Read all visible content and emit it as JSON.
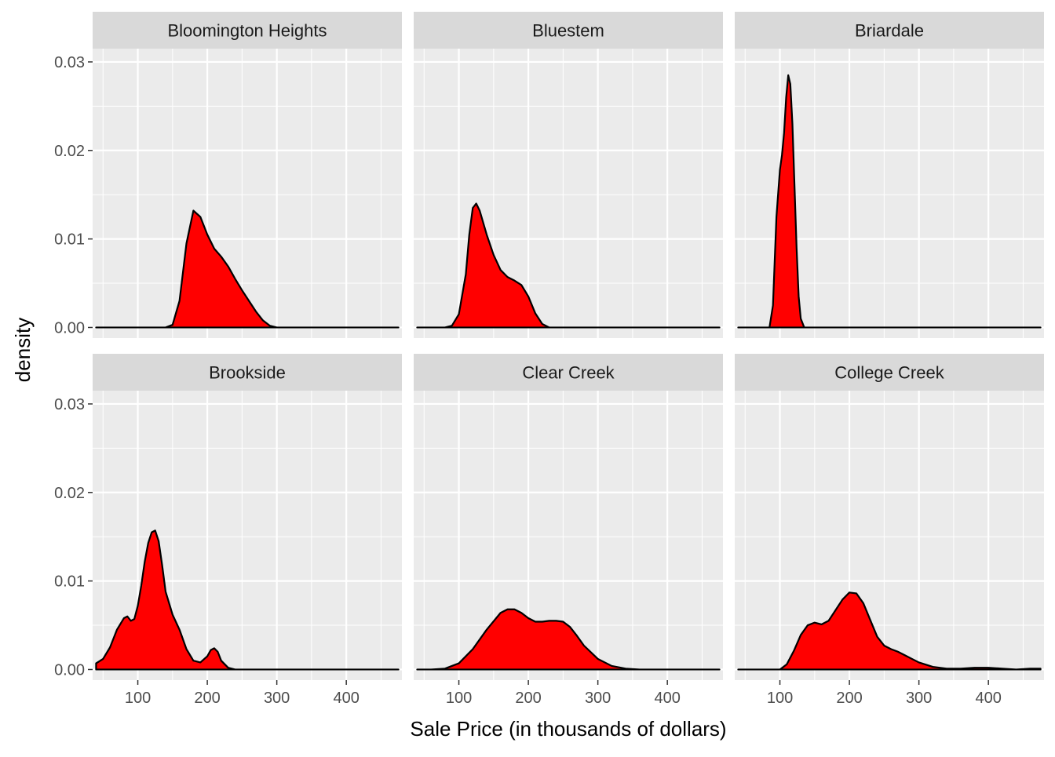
{
  "chart_data": {
    "type": "area",
    "subtype": "faceted-density",
    "xlabel": "Sale Price (in thousands of dollars)",
    "ylabel": "density",
    "xlim": [
      35,
      480
    ],
    "ylim": [
      -0.0012,
      0.0315
    ],
    "x_ticks": [
      100,
      200,
      300,
      400
    ],
    "x_tick_labels": [
      "100",
      "200",
      "300",
      "400"
    ],
    "y_ticks": [
      0,
      0.01,
      0.02,
      0.03
    ],
    "y_tick_labels": [
      "0.00",
      "0.01",
      "0.02",
      "0.03"
    ],
    "grid": true,
    "legend": "none",
    "fill_color": "#ff0000",
    "line_color": "#000000",
    "panel_background": "#ebebeb",
    "strip_background": "#d9d9d9",
    "layout": {
      "rows": 2,
      "cols": 3
    },
    "facets": [
      {
        "name": "Bloomington Heights",
        "x": [
          40,
          140,
          150,
          160,
          170,
          180,
          190,
          200,
          210,
          220,
          230,
          240,
          250,
          260,
          270,
          280,
          290,
          300,
          310,
          475
        ],
        "y": [
          0,
          0,
          0.0003,
          0.003,
          0.0095,
          0.0132,
          0.0125,
          0.0105,
          0.0089,
          0.008,
          0.0069,
          0.0055,
          0.0042,
          0.003,
          0.0018,
          0.0008,
          0.0002,
          0,
          0,
          0
        ]
      },
      {
        "name": "Bluestem",
        "x": [
          40,
          80,
          90,
          100,
          110,
          115,
          120,
          125,
          130,
          140,
          150,
          160,
          170,
          180,
          190,
          200,
          210,
          220,
          230,
          475
        ],
        "y": [
          0,
          0,
          0.0002,
          0.0015,
          0.006,
          0.0105,
          0.0135,
          0.014,
          0.0132,
          0.0105,
          0.0082,
          0.0065,
          0.0057,
          0.0053,
          0.0048,
          0.0035,
          0.0016,
          0.0004,
          0,
          0
        ]
      },
      {
        "name": "Briardale",
        "x": [
          40,
          85,
          90,
          95,
          100,
          103,
          106,
          109,
          112,
          115,
          118,
          121,
          124,
          127,
          130,
          135,
          475
        ],
        "y": [
          0,
          0,
          0.0025,
          0.0125,
          0.0178,
          0.0195,
          0.022,
          0.026,
          0.0285,
          0.0275,
          0.023,
          0.016,
          0.009,
          0.0035,
          0.001,
          0,
          0
        ]
      },
      {
        "name": "Brookside",
        "x": [
          40,
          50,
          60,
          70,
          80,
          85,
          90,
          95,
          100,
          105,
          110,
          115,
          120,
          125,
          130,
          135,
          140,
          150,
          160,
          170,
          180,
          190,
          200,
          205,
          210,
          215,
          220,
          230,
          240,
          475
        ],
        "y": [
          0.0007,
          0.0012,
          0.0025,
          0.0045,
          0.0058,
          0.006,
          0.0055,
          0.0057,
          0.0072,
          0.0095,
          0.0122,
          0.0143,
          0.0155,
          0.0157,
          0.0145,
          0.0118,
          0.0088,
          0.0062,
          0.0045,
          0.0023,
          0.001,
          0.0008,
          0.0015,
          0.0022,
          0.0024,
          0.002,
          0.001,
          0.0002,
          0,
          0
        ]
      },
      {
        "name": "Clear Creek",
        "x": [
          40,
          60,
          80,
          100,
          120,
          140,
          160,
          170,
          180,
          190,
          200,
          210,
          220,
          230,
          240,
          250,
          260,
          270,
          280,
          300,
          320,
          340,
          360,
          475
        ],
        "y": [
          0,
          0,
          0.0001,
          0.0007,
          0.0023,
          0.0045,
          0.0064,
          0.0068,
          0.0068,
          0.0064,
          0.0058,
          0.0054,
          0.0054,
          0.0055,
          0.0055,
          0.0054,
          0.0048,
          0.0038,
          0.0027,
          0.0012,
          0.0004,
          0.0001,
          0,
          0
        ]
      },
      {
        "name": "College Creek",
        "x": [
          40,
          100,
          110,
          120,
          130,
          140,
          150,
          160,
          170,
          180,
          190,
          200,
          210,
          220,
          230,
          240,
          250,
          260,
          270,
          280,
          290,
          300,
          320,
          340,
          360,
          380,
          390,
          400,
          420,
          440,
          460,
          475
        ],
        "y": [
          0,
          0,
          0.0006,
          0.0021,
          0.0039,
          0.005,
          0.0053,
          0.0051,
          0.0055,
          0.0067,
          0.0079,
          0.0087,
          0.0086,
          0.0075,
          0.0056,
          0.0037,
          0.0027,
          0.0023,
          0.002,
          0.0016,
          0.0012,
          0.0008,
          0.0003,
          0.0001,
          0.0001,
          0.0002,
          0.0002,
          0.0002,
          0.0001,
          0,
          0.0001,
          0.0001
        ]
      }
    ]
  }
}
